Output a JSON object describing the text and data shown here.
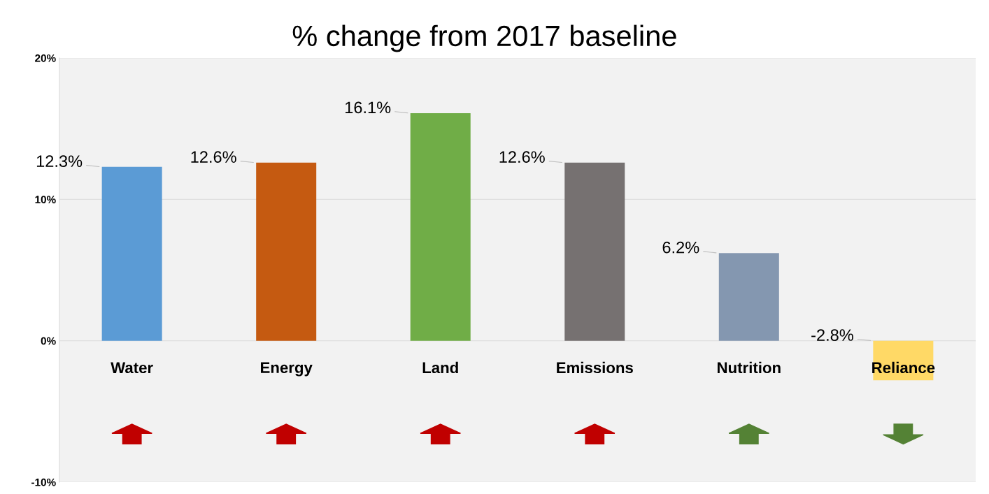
{
  "chart_data": {
    "type": "bar",
    "title": "% change from 2017 baseline",
    "categories": [
      "Water",
      "Energy",
      "Land",
      "Emissions",
      "Nutrition",
      "Reliance"
    ],
    "values": [
      12.3,
      12.6,
      16.1,
      12.6,
      6.2,
      -2.8
    ],
    "colors": [
      "#5b9bd5",
      "#c55a11",
      "#70ad47",
      "#767171",
      "#8497b0",
      "#ffd966"
    ],
    "value_labels": [
      "12.3%",
      "12.6%",
      "16.1%",
      "12.6%",
      "6.2%",
      "-2.8%"
    ],
    "ylim": [
      -10,
      20
    ],
    "yticks": [
      {
        "value": -10,
        "label": "-10%"
      },
      {
        "value": 0,
        "label": "0%"
      },
      {
        "value": 10,
        "label": "10%"
      },
      {
        "value": 20,
        "label": "20%"
      }
    ],
    "grid": "y"
  }
}
